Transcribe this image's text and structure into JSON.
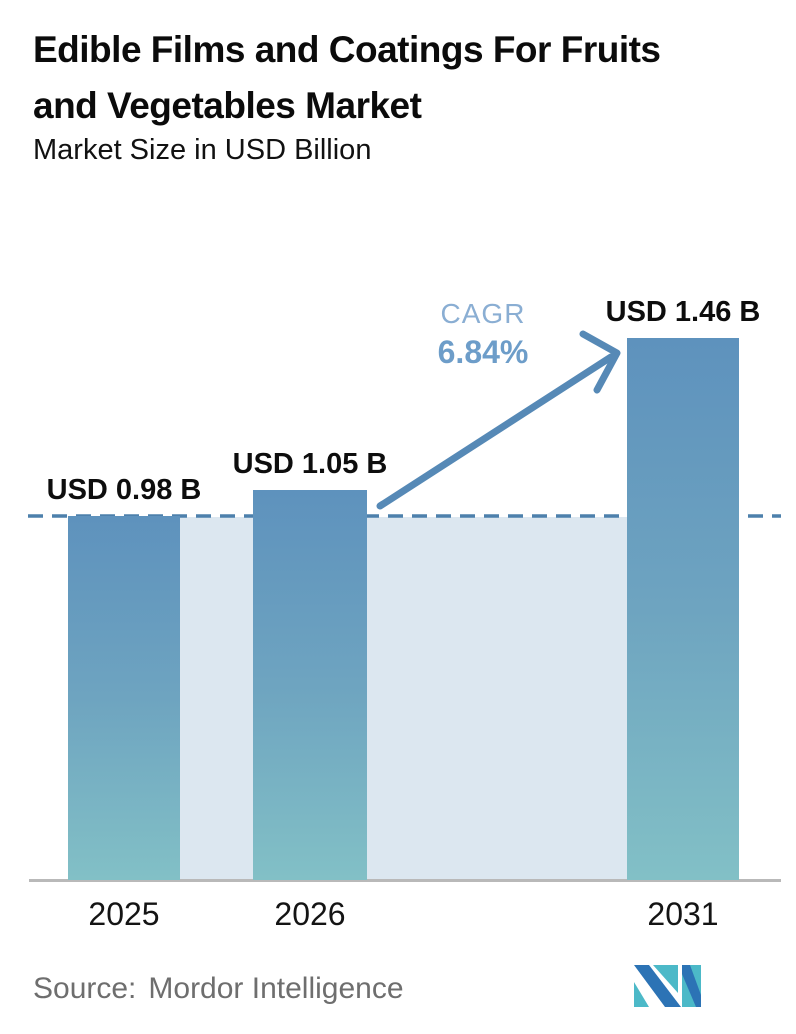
{
  "header": {
    "title_lines": [
      "Edible Films and Coatings For Fruits",
      "and Vegetables Market"
    ],
    "subtitle": "Market Size in USD Billion"
  },
  "annotation": {
    "label": "CAGR",
    "value": "6.84%"
  },
  "footer": {
    "source_prefix": "Source:",
    "source_name": "Mordor Intelligence",
    "logo": "mordor-intelligence-logo"
  },
  "colors": {
    "bar_top": "#5e92bd",
    "bar_mid": "#6ea4c0",
    "bar_bottom": "#82c0c6",
    "band": "#dce7f0",
    "dashed": "#4d80ac",
    "arrow": "#5689b6",
    "cagr_label": "#8aaed3",
    "cagr_value": "#6d9dc9",
    "axis": "#b9b9b9",
    "source_text": "#6e6e6e",
    "logo_blue": "#2c73b5",
    "logo_teal": "#4cb9c8"
  },
  "chart_data": {
    "type": "bar",
    "title": "Edible Films and Coatings For Fruits and Vegetables Market",
    "subtitle": "Market Size in USD Billion",
    "categories": [
      "2025",
      "2026",
      "2031"
    ],
    "values": [
      0.98,
      1.05,
      1.46
    ],
    "value_labels": [
      "USD 0.98 B",
      "USD 1.05 B",
      "USD 1.46 B"
    ],
    "unit": "USD Billion",
    "ylim": [
      0,
      1.6
    ],
    "grid": false,
    "legend": false,
    "reference_line": {
      "value": 0.98,
      "style": "dashed"
    },
    "annotation": {
      "label": "CAGR",
      "value": "6.84%",
      "arrow": "from 2026 bar to 2031 bar"
    },
    "background_band": "between first and last bar, below reference line",
    "source": "Mordor Intelligence"
  }
}
